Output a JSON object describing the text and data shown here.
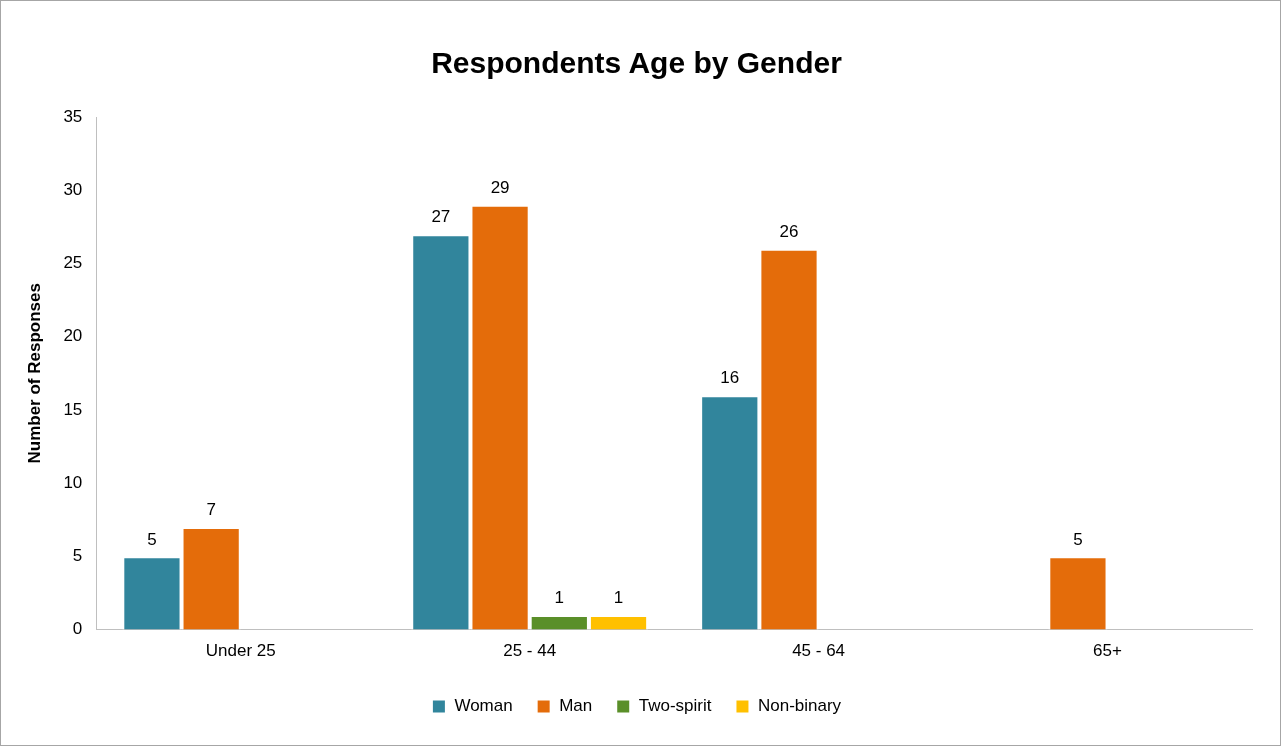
{
  "chart_data": {
    "type": "bar",
    "title": "Respondents Age by Gender",
    "ylabel": "Number of Responses",
    "categories": [
      "Under 25",
      "25 - 44",
      "45 - 64",
      "65+"
    ],
    "series": [
      {
        "name": "Woman",
        "color": "#31859c",
        "values": [
          5,
          27,
          16,
          null
        ]
      },
      {
        "name": "Man",
        "color": "#e46c0a",
        "values": [
          7,
          29,
          26,
          5
        ]
      },
      {
        "name": "Two-spirit",
        "color": "#5a8f29",
        "values": [
          null,
          1,
          null,
          null
        ]
      },
      {
        "name": "Non-binary",
        "color": "#ffc000",
        "values": [
          null,
          1,
          null,
          null
        ]
      }
    ],
    "ylim": [
      0,
      35
    ],
    "yticks": [
      0,
      5,
      10,
      15,
      20,
      25,
      30,
      35
    ],
    "grid": false,
    "legend": "bottom",
    "data_labels": true
  }
}
